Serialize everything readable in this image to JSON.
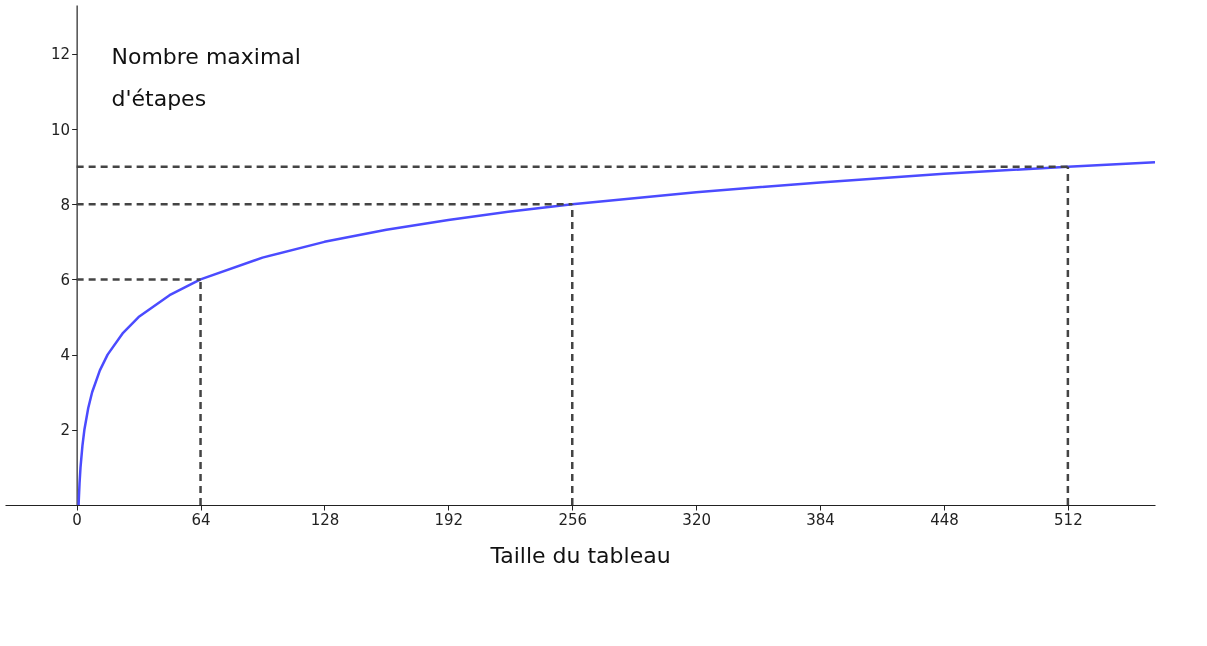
{
  "chart_data": {
    "type": "line",
    "xlabel": "Taille du tableau",
    "ylabel": "Nombre maximal\nd'étapes",
    "xlim": [
      -37,
      557
    ],
    "ylim": [
      0,
      13.3
    ],
    "xticks": [
      0,
      64,
      128,
      192,
      256,
      320,
      384,
      448,
      512
    ],
    "yticks": [
      2,
      4,
      6,
      8,
      10,
      12
    ],
    "grid": false,
    "marker": "none",
    "line_style": "solid",
    "series": [
      {
        "color": "#4b4bff",
        "x": [
          1,
          1.5,
          2,
          3,
          4,
          6,
          8,
          12,
          16,
          24,
          32,
          48,
          64,
          96,
          128,
          160,
          192,
          224,
          256,
          320,
          384,
          448,
          512,
          557
        ],
        "values": [
          0,
          0.58,
          1,
          1.58,
          2,
          2.58,
          3,
          3.58,
          4,
          4.58,
          5,
          5.58,
          6,
          6.58,
          7,
          7.32,
          7.58,
          7.81,
          8,
          8.32,
          8.58,
          8.81,
          9,
          9.12
        ]
      }
    ],
    "ref_lines": [
      {
        "axis": "x",
        "value": 64,
        "color": "#444444",
        "line_style": "dashed"
      },
      {
        "axis": "y",
        "value": 6,
        "color": "#444444",
        "line_style": "dashed"
      },
      {
        "axis": "x",
        "value": 256,
        "color": "#444444",
        "line_style": "dashed"
      },
      {
        "axis": "y",
        "value": 8,
        "color": "#444444",
        "line_style": "dashed"
      },
      {
        "axis": "x",
        "value": 512,
        "color": "#444444",
        "line_style": "dashed"
      },
      {
        "axis": "y",
        "value": 9,
        "color": "#444444",
        "line_style": "dashed"
      }
    ]
  }
}
